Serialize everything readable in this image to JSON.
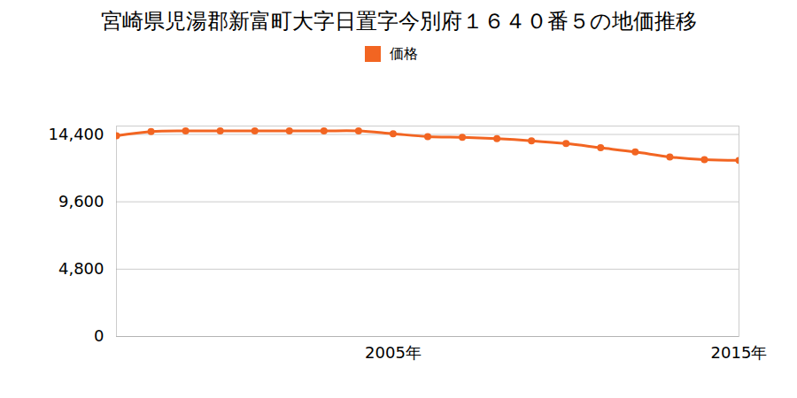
{
  "chart_data": {
    "type": "line",
    "title": "宮崎県児湯郡新富町大字日置字今別府１６４０番５の地価推移",
    "series": [
      {
        "name": "価格",
        "color": "#f26522",
        "marker": "circle",
        "line_style": "solid",
        "values": [
          14300,
          14600,
          14650,
          14650,
          14650,
          14650,
          14650,
          14650,
          14450,
          14250,
          14200,
          14100,
          13950,
          13750,
          13450,
          13150,
          12800,
          12600,
          12550
        ]
      }
    ],
    "x": [
      1997,
      1998,
      1999,
      2000,
      2001,
      2002,
      2003,
      2004,
      2005,
      2006,
      2007,
      2008,
      2009,
      2010,
      2011,
      2012,
      2013,
      2014,
      2015
    ],
    "xlim": [
      1997,
      2015
    ],
    "xticks": [
      {
        "value": 2005,
        "label": "2005年"
      },
      {
        "value": 2015,
        "label": "2015年"
      }
    ],
    "ylim": [
      0,
      15000
    ],
    "yticks": [
      0,
      {
        "value": 4800,
        "label": "4,800"
      },
      {
        "value": 9600,
        "label": "9,600"
      },
      {
        "value": 14400,
        "label": "14,400"
      }
    ],
    "grid": true,
    "legend": "top"
  }
}
